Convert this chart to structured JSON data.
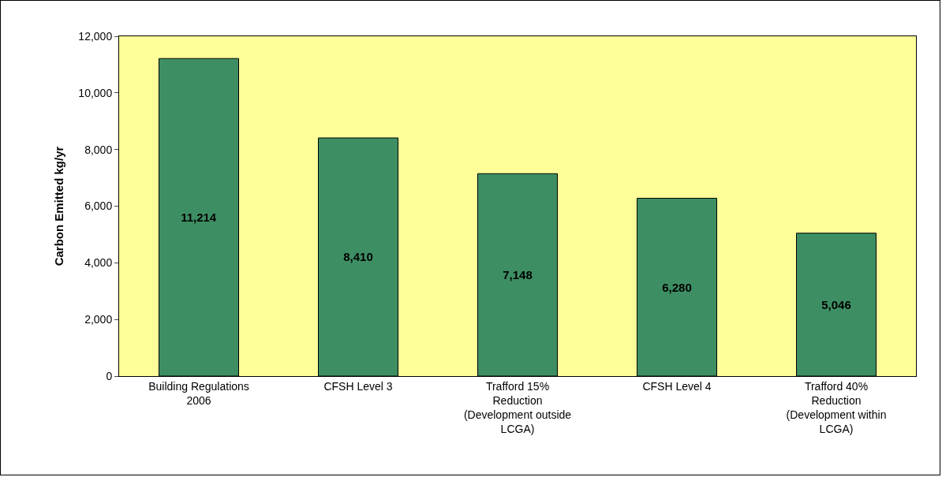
{
  "chart_data": {
    "type": "bar",
    "ylabel": "Carbon Emitted kg/yr",
    "categories": [
      "Building Regulations 2006",
      "CFSH Level 3",
      "Trafford 15% Reduction (Development outside LCGA)",
      "CFSH Level 4",
      "Trafford 40% Reduction (Development within LCGA)"
    ],
    "values": [
      11214,
      8410,
      7148,
      6280,
      5046
    ],
    "color": "#3d8f63",
    "ylim": [
      0,
      12000
    ],
    "yticks": [
      {
        "value": 0,
        "label": "0"
      },
      {
        "value": 2000,
        "label": "2,000"
      },
      {
        "value": 4000,
        "label": "4,000"
      },
      {
        "value": 6000,
        "label": "6,000"
      },
      {
        "value": 8000,
        "label": "8,000"
      },
      {
        "value": 10000,
        "label": "10,000"
      },
      {
        "value": 12000,
        "label": "12,000"
      }
    ],
    "value_labels": [
      "11,214",
      "8,410",
      "7,148",
      "6,280",
      "5,046"
    ],
    "grid": false
  }
}
